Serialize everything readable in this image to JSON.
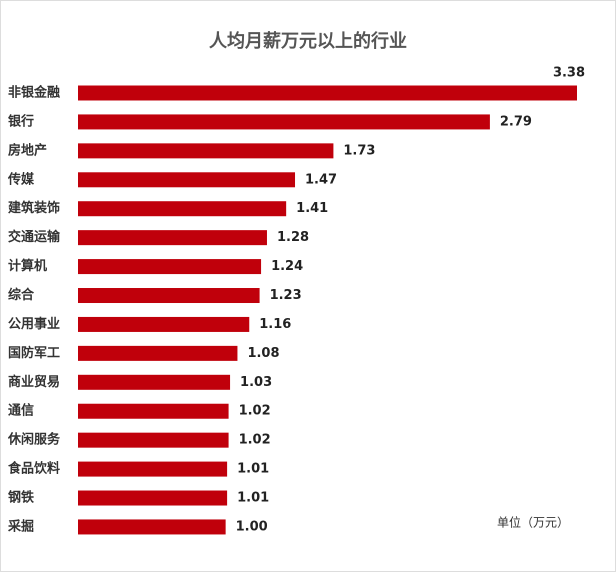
{
  "chart_data": {
    "type": "bar",
    "orientation": "horizontal",
    "title": "人均月薪万元以上的行业",
    "categories": [
      "非银金融",
      "银行",
      "房地产",
      "传媒",
      "建筑装饰",
      "交通运输",
      "计算机",
      "综合",
      "公用事业",
      "国防军工",
      "商业贸易",
      "通信",
      "休闲服务",
      "食品饮料",
      "钢铁",
      "采掘"
    ],
    "values": [
      3.38,
      2.79,
      1.73,
      1.47,
      1.41,
      1.28,
      1.24,
      1.23,
      1.16,
      1.08,
      1.03,
      1.02,
      1.02,
      1.01,
      1.01,
      1.0
    ],
    "value_labels": [
      "3.38",
      "2.79",
      "1.73",
      "1.47",
      "1.41",
      "1.28",
      "1.24",
      "1.23",
      "1.16",
      "1.08",
      "1.03",
      "1.02",
      "1.02",
      "1.01",
      "1.01",
      "1.00"
    ],
    "color": "#c0000b",
    "annotation": "单位（万元）"
  }
}
